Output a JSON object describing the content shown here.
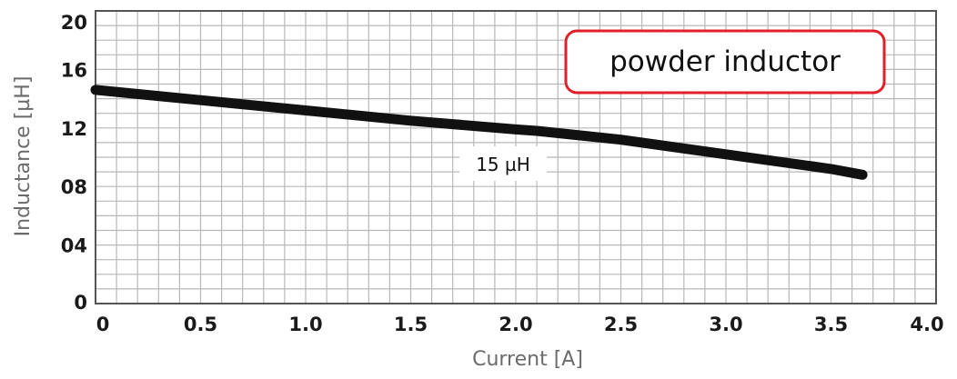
{
  "chart_data": {
    "type": "line",
    "xlabel": "Current [A]",
    "ylabel": "Inductance [µH]",
    "xlim": [
      0,
      4.0
    ],
    "ylim": [
      0,
      20
    ],
    "xticks": [
      {
        "value": 0,
        "label": "0"
      },
      {
        "value": 0.5,
        "label": "0.5"
      },
      {
        "value": 1.0,
        "label": "1.0"
      },
      {
        "value": 1.5,
        "label": "1.5"
      },
      {
        "value": 2.0,
        "label": "2.0"
      },
      {
        "value": 2.5,
        "label": "2.5"
      },
      {
        "value": 3.0,
        "label": "3.0"
      },
      {
        "value": 3.5,
        "label": "3.5"
      },
      {
        "value": 4.0,
        "label": "4.0"
      }
    ],
    "yticks": [
      {
        "value": 0,
        "label": "0"
      },
      {
        "value": 4,
        "label": "04"
      },
      {
        "value": 8,
        "label": "08"
      },
      {
        "value": 12,
        "label": "12"
      },
      {
        "value": 16,
        "label": "16"
      },
      {
        "value": 20,
        "label": "20"
      }
    ],
    "grid": true,
    "x_minor_step": 0.1,
    "y_minor_step": 1,
    "series": [
      {
        "color": "#111111",
        "x": [
          0,
          0.5,
          1.0,
          1.5,
          2.0,
          2.1,
          2.5,
          3.0,
          3.5,
          3.65
        ],
        "y": [
          14.6,
          13.9,
          13.2,
          12.5,
          11.9,
          11.8,
          11.2,
          10.2,
          9.2,
          8.8
        ]
      }
    ],
    "annotations": [
      {
        "text": "powder inductor",
        "boxed": true,
        "box_color": "#e0202a"
      },
      {
        "text": "15 µH",
        "x": 2.0,
        "y": 10.2
      }
    ]
  }
}
